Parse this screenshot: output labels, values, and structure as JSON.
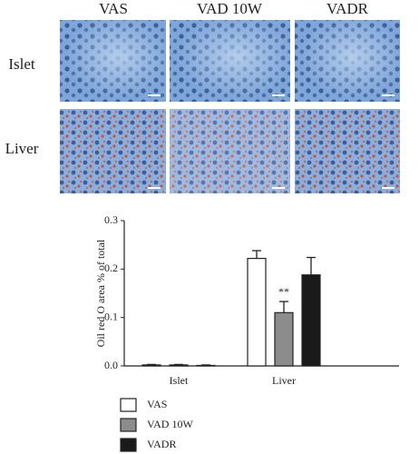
{
  "micrographs": {
    "columns": [
      "VAS",
      "VAD 10W",
      "VADR"
    ],
    "rows": [
      "Islet",
      "Liver"
    ]
  },
  "chart_data": {
    "type": "bar",
    "ylabel": "Oil red O area % of total",
    "categories": [
      "Islet",
      "Liver"
    ],
    "series": [
      {
        "name": "VAS",
        "color": "#ffffff",
        "values": [
          0.002,
          0.222
        ],
        "errors": [
          0.001,
          0.016
        ]
      },
      {
        "name": "VAD 10W",
        "color": "#8c8c8c",
        "values": [
          0.002,
          0.11
        ],
        "errors": [
          0.001,
          0.023
        ]
      },
      {
        "name": "VADR",
        "color": "#1a1a1a",
        "values": [
          0.001,
          0.188
        ],
        "errors": [
          0.001,
          0.036
        ]
      }
    ],
    "annotations": [
      {
        "text": "**",
        "series": 1,
        "category": 1
      }
    ],
    "ylim": [
      0,
      0.3
    ],
    "yticks": [
      {
        "value": 0,
        "label": "0.0"
      },
      0.1,
      0.2,
      0.3
    ]
  }
}
